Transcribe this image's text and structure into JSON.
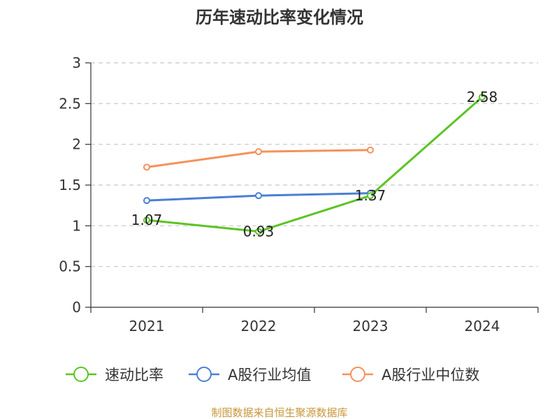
{
  "chart_data": {
    "type": "line",
    "title": "历年速动比率变化情况",
    "xlabel": "",
    "ylabel": "",
    "categories": [
      "2021",
      "2022",
      "2023",
      "2024"
    ],
    "ylim": [
      0,
      3
    ],
    "yticks": [
      "0",
      "0.5",
      "1",
      "1.5",
      "2",
      "2.5",
      "3"
    ],
    "grid": true,
    "legend_position": "bottom",
    "series": [
      {
        "name": "速动比率",
        "color": "#5bc424",
        "values": [
          1.07,
          0.93,
          1.37,
          2.58
        ],
        "labels": [
          "1.07",
          "0.93",
          "1.37",
          "2.58"
        ]
      },
      {
        "name": "A股行业均值",
        "color": "#4a7fd6",
        "values": [
          1.31,
          1.37,
          1.4,
          null
        ]
      },
      {
        "name": "A股行业中位数",
        "color": "#f5915c",
        "values": [
          1.72,
          1.91,
          1.93,
          null
        ]
      }
    ]
  },
  "footer": {
    "source": "制图数据来自恒生聚源数据库"
  }
}
